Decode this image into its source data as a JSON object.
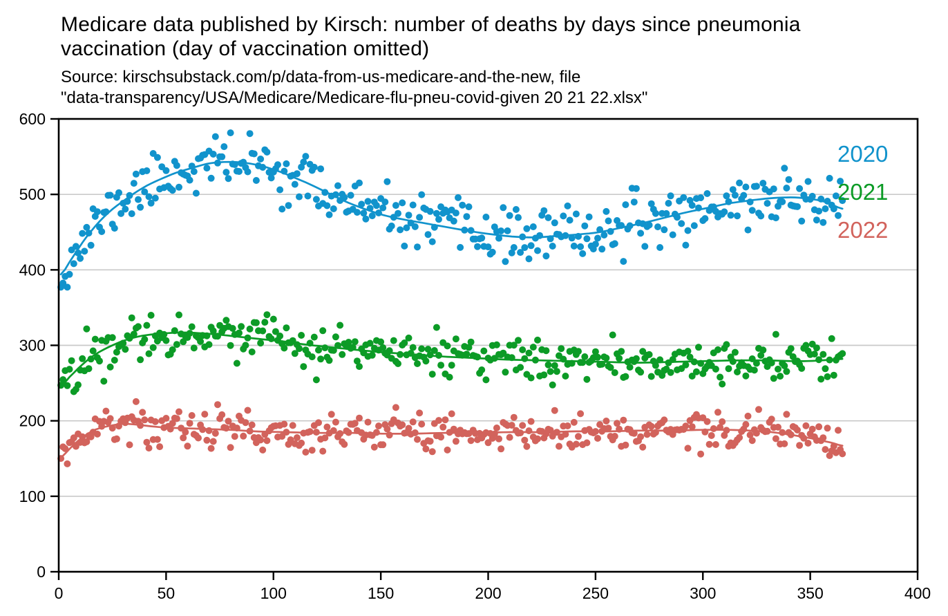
{
  "header": {
    "title_lines": [
      "Medicare data published by Kirsch: number of deaths by days since pneumonia",
      "vaccination (day of vaccination omitted)"
    ],
    "subtitle_lines": [
      "Source: kirschsubstack.com/p/data-from-us-medicare-and-the-new, file",
      "\"data-transparency/USA/Medicare/Medicare-flu-pneu-covid-given 20 21 22.xlsx\""
    ]
  },
  "chart_data": {
    "type": "scatter",
    "title": "Medicare data published by Kirsch: number of deaths by days since pneumonia vaccination (day of vaccination omitted)",
    "subtitle": "Source: kirschsubstack.com/p/data-from-us-medicare-and-the-new, file \"data-transparency/USA/Medicare/Medicare-flu-pneu-covid-given 20 21 22.xlsx\"",
    "xlabel": "days since pneumonia vaccination",
    "ylabel": "number of deaths",
    "xlim": [
      0,
      400
    ],
    "ylim": [
      0,
      600
    ],
    "x_ticks": [
      0,
      50,
      100,
      150,
      200,
      250,
      300,
      350,
      400
    ],
    "y_ticks": [
      0,
      100,
      200,
      300,
      400,
      500,
      600
    ],
    "grid": "horizontal-gridlines-100-to-500",
    "grid_color": "#c9c9c9",
    "axis_color": "#000000",
    "tick_label_color": "#000000",
    "legend": {
      "position": "inside-upper-right",
      "x": 1212,
      "baselines": [
        234,
        289,
        344
      ],
      "entries": [
        {
          "label": "2020",
          "color": "#1193cc"
        },
        {
          "label": "2021",
          "color": "#0c9b26"
        },
        {
          "label": "2022",
          "color": "#d2635c"
        }
      ]
    },
    "series": [
      {
        "name": "2020",
        "color": "#1193cc",
        "day_range": [
          1,
          365
        ],
        "points_per_day": 1,
        "trend": [
          [
            1,
            394
          ],
          [
            6,
            415
          ],
          [
            12,
            440
          ],
          [
            18,
            461
          ],
          [
            24,
            478
          ],
          [
            30,
            491
          ],
          [
            36,
            503
          ],
          [
            42,
            513
          ],
          [
            48,
            521
          ],
          [
            55,
            529
          ],
          [
            62,
            535
          ],
          [
            70,
            541
          ],
          [
            78,
            543
          ],
          [
            86,
            542
          ],
          [
            94,
            538
          ],
          [
            102,
            531
          ],
          [
            110,
            522
          ],
          [
            118,
            512
          ],
          [
            126,
            501
          ],
          [
            134,
            490
          ],
          [
            142,
            481
          ],
          [
            152,
            472
          ],
          [
            162,
            466
          ],
          [
            172,
            461
          ],
          [
            182,
            456
          ],
          [
            192,
            451
          ],
          [
            202,
            447
          ],
          [
            212,
            444
          ],
          [
            222,
            443
          ],
          [
            232,
            445
          ],
          [
            242,
            447
          ],
          [
            252,
            450
          ],
          [
            262,
            456
          ],
          [
            272,
            462
          ],
          [
            282,
            469
          ],
          [
            292,
            476
          ],
          [
            302,
            482
          ],
          [
            312,
            488
          ],
          [
            322,
            492
          ],
          [
            332,
            495
          ],
          [
            342,
            496
          ],
          [
            350,
            494
          ],
          [
            357,
            490
          ],
          [
            365,
            481
          ]
        ],
        "scatter_model": {
          "method": "gaussian-noise-around-trend",
          "sigma": 17,
          "seed": 11,
          "clamp": [
            377,
            599
          ]
        }
      },
      {
        "name": "2021",
        "color": "#0c9b26",
        "day_range": [
          1,
          365
        ],
        "points_per_day": 1,
        "trend": [
          [
            1,
            246
          ],
          [
            5,
            258
          ],
          [
            10,
            272
          ],
          [
            15,
            284
          ],
          [
            20,
            293
          ],
          [
            25,
            300
          ],
          [
            30,
            306
          ],
          [
            36,
            311
          ],
          [
            42,
            314
          ],
          [
            50,
            316
          ],
          [
            58,
            317
          ],
          [
            66,
            316
          ],
          [
            75,
            314
          ],
          [
            85,
            311
          ],
          [
            95,
            308
          ],
          [
            105,
            305
          ],
          [
            115,
            301
          ],
          [
            125,
            298
          ],
          [
            135,
            295
          ],
          [
            150,
            291
          ],
          [
            165,
            288
          ],
          [
            180,
            285
          ],
          [
            195,
            283
          ],
          [
            210,
            281
          ],
          [
            225,
            280
          ],
          [
            240,
            279
          ],
          [
            255,
            278
          ],
          [
            270,
            277
          ],
          [
            285,
            278
          ],
          [
            300,
            279
          ],
          [
            315,
            280
          ],
          [
            330,
            280
          ],
          [
            345,
            279
          ],
          [
            355,
            280
          ],
          [
            365,
            282
          ]
        ],
        "scatter_model": {
          "method": "gaussian-noise-around-trend",
          "sigma": 13.5,
          "seed": 22,
          "clamp": [
            229,
            346
          ]
        }
      },
      {
        "name": "2022",
        "color": "#d2635c",
        "day_range": [
          1,
          365
        ],
        "points_per_day": 1,
        "trend": [
          [
            1,
            151
          ],
          [
            4,
            160
          ],
          [
            8,
            171
          ],
          [
            12,
            180
          ],
          [
            16,
            187
          ],
          [
            20,
            191
          ],
          [
            25,
            194
          ],
          [
            30,
            196
          ],
          [
            36,
            195
          ],
          [
            42,
            193
          ],
          [
            50,
            191
          ],
          [
            60,
            190
          ],
          [
            70,
            189
          ],
          [
            80,
            188
          ],
          [
            92,
            186
          ],
          [
            105,
            185
          ],
          [
            120,
            184
          ],
          [
            135,
            184
          ],
          [
            150,
            183
          ],
          [
            165,
            183
          ],
          [
            180,
            184
          ],
          [
            195,
            184
          ],
          [
            210,
            185
          ],
          [
            225,
            185
          ],
          [
            240,
            186
          ],
          [
            255,
            186
          ],
          [
            270,
            187
          ],
          [
            285,
            187
          ],
          [
            300,
            188
          ],
          [
            312,
            188
          ],
          [
            322,
            187
          ],
          [
            332,
            185
          ],
          [
            342,
            181
          ],
          [
            352,
            176
          ],
          [
            360,
            171
          ],
          [
            365,
            167
          ]
        ],
        "scatter_model": {
          "method": "gaussian-noise-around-trend",
          "sigma": 12.5,
          "seed": 33,
          "clamp": [
            124,
            231
          ]
        }
      }
    ]
  }
}
